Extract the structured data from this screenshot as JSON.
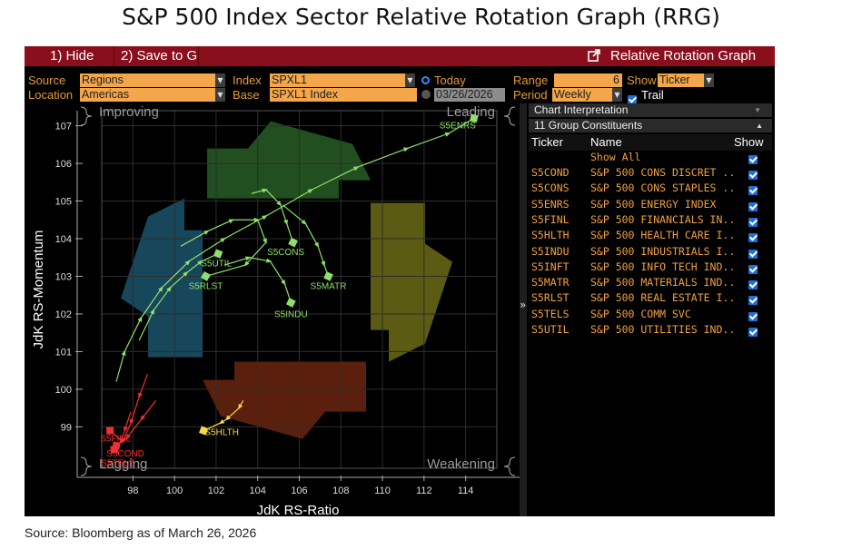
{
  "title": "S&P 500 Index Sector Relative Rotation Graph (RRG)",
  "source_note": "Source: Bloomberg as of March 26, 2026",
  "toolbar": {
    "hide_label": "1) Hide",
    "save_label": "2) Save to G",
    "window_title": "Relative Rotation Graph"
  },
  "controls": {
    "source_label": "Source",
    "source_value": "Regions",
    "location_label": "Location",
    "location_value": "Americas",
    "index_label": "Index",
    "index_value": "SPXL1",
    "base_label": "Base",
    "base_value": "SPXL1 Index",
    "today_label": "Today",
    "date_value": "03/26/2026",
    "range_label": "Range",
    "range_value": "6",
    "period_label": "Period",
    "period_value": "Weekly",
    "show_label": "Show",
    "show_value": "Ticker",
    "trail_label": "Trail"
  },
  "panel": {
    "header1": "Chart Interpretation",
    "header2": "11 Group Constituents",
    "col_ticker": "Ticker",
    "col_name": "Name",
    "col_show": "Show",
    "show_all": "Show All",
    "rows": [
      {
        "ticker": "S5COND",
        "name": "S&P 500 CONS DISCRET ..."
      },
      {
        "ticker": "S5CONS",
        "name": "S&P 500 CONS STAPLES ..."
      },
      {
        "ticker": "S5ENRS",
        "name": "S&P 500 ENERGY INDEX"
      },
      {
        "ticker": "S5FINL",
        "name": "S&P 500 FINANCIALS IN..."
      },
      {
        "ticker": "S5HLTH",
        "name": "S&P 500 HEALTH CARE I..."
      },
      {
        "ticker": "S5INDU",
        "name": "S&P 500 INDUSTRIALS I..."
      },
      {
        "ticker": "S5INFT",
        "name": "S&P 500 INFO TECH IND..."
      },
      {
        "ticker": "S5MATR",
        "name": "S&P 500 MATERIALS IND..."
      },
      {
        "ticker": "S5RLST",
        "name": "S&P 500 REAL ESTATE I..."
      },
      {
        "ticker": "S5TELS",
        "name": "S&P 500 COMM SVC"
      },
      {
        "ticker": "S5UTIL",
        "name": "S&P 500 UTILITIES IND..."
      }
    ]
  },
  "chart_data": {
    "type": "scatter",
    "xlabel": "JdK RS-Ratio",
    "ylabel": "JdK RS-Momentum",
    "xlim": [
      96.5,
      115.5
    ],
    "ylim": [
      97.9,
      107.4
    ],
    "xticks": [
      98,
      100,
      102,
      104,
      106,
      108,
      110,
      112,
      114
    ],
    "yticks": [
      99,
      100,
      101,
      102,
      103,
      104,
      105,
      106,
      107
    ],
    "quadrants": {
      "top_left": "Improving",
      "top_right": "Leading",
      "bottom_left": "Lagging",
      "bottom_right": "Weakening"
    },
    "quadrant_colors": {
      "improving": "#1f5f7a",
      "leading": "#2d6a2a",
      "weakening": "#7a7a1a",
      "lagging": "#7a2a12"
    },
    "series": [
      {
        "name": "S5ENRS",
        "color": "#8ee06a",
        "points": [
          [
            97.2,
            100.2
          ],
          [
            97.6,
            101
          ],
          [
            98.4,
            101.9
          ],
          [
            99.4,
            102.7
          ],
          [
            100.7,
            103.4
          ],
          [
            102.4,
            104
          ],
          [
            104.4,
            104.6
          ],
          [
            106.6,
            105.3
          ],
          [
            108.8,
            105.9
          ],
          [
            111.2,
            106.4
          ],
          [
            113.2,
            106.8
          ],
          [
            114.4,
            107.2
          ]
        ]
      },
      {
        "name": "S5UTIL",
        "color": "#8ee06a",
        "points": [
          [
            98.3,
            101.3
          ],
          [
            99,
            102.1
          ],
          [
            99.8,
            102.7
          ],
          [
            100.6,
            103.1
          ],
          [
            101.3,
            103.4
          ],
          [
            102.1,
            103.6
          ]
        ]
      },
      {
        "name": "S5RLST",
        "color": "#8ee06a",
        "points": [
          [
            100.3,
            103.8
          ],
          [
            101.6,
            104.2
          ],
          [
            102.8,
            104.5
          ],
          [
            104,
            104.5
          ],
          [
            104.4,
            103.9
          ],
          [
            103.4,
            103.3
          ],
          [
            101.5,
            103
          ]
        ]
      },
      {
        "name": "S5CONS",
        "color": "#8ee06a",
        "points": [
          [
            103.7,
            105.2
          ],
          [
            104.4,
            105.3
          ],
          [
            105.1,
            104.9
          ],
          [
            105.4,
            104.4
          ],
          [
            105.7,
            103.9
          ]
        ]
      },
      {
        "name": "S5MATR",
        "color": "#8ee06a",
        "points": [
          [
            105.2,
            104.9
          ],
          [
            106.3,
            104.4
          ],
          [
            106.9,
            103.8
          ],
          [
            107.2,
            103.3
          ],
          [
            107.4,
            103
          ]
        ]
      },
      {
        "name": "S5INDU",
        "color": "#8ee06a",
        "points": [
          [
            102.4,
            103.3
          ],
          [
            103.6,
            103.5
          ],
          [
            104.6,
            103.4
          ],
          [
            105.3,
            102.8
          ],
          [
            105.6,
            102.3
          ]
        ]
      },
      {
        "name": "S5HLTH",
        "color": "#f5d84a",
        "points": [
          [
            103.3,
            99.7
          ],
          [
            103.1,
            99.5
          ],
          [
            102.5,
            99.2
          ],
          [
            102.2,
            99.1
          ],
          [
            101.4,
            98.9
          ]
        ]
      },
      {
        "name": "S5FINL",
        "color": "#f03030",
        "points": [
          [
            98.7,
            100.4
          ],
          [
            98.3,
            99.8
          ],
          [
            97.9,
            99.1
          ],
          [
            97.5,
            98.6
          ],
          [
            96.9,
            98.9
          ]
        ]
      },
      {
        "name": "S5COND",
        "color": "#f03030",
        "points": [
          [
            99.1,
            99.7
          ],
          [
            98.4,
            99.2
          ],
          [
            97.7,
            98.7
          ],
          [
            97.2,
            98.5
          ]
        ]
      },
      {
        "name": "S5TELS",
        "color": "#f03030",
        "points": [
          [
            97.9,
            99.4
          ],
          [
            97.6,
            98.9
          ],
          [
            97.4,
            98.6
          ],
          [
            97.1,
            98.4
          ]
        ]
      }
    ],
    "labels": [
      {
        "text": "S5ENRS",
        "x": 114.4,
        "y": 107.2
      },
      {
        "text": "S5UTIL",
        "x": 102.1,
        "y": 103.6
      },
      {
        "text": "S5RLST",
        "x": 101.5,
        "y": 103
      },
      {
        "text": "S5CONS",
        "x": 105.7,
        "y": 103.9
      },
      {
        "text": "S5MATR",
        "x": 107.4,
        "y": 103
      },
      {
        "text": "S5INDU",
        "x": 105.6,
        "y": 102.3
      },
      {
        "text": "S5HLTH",
        "x": 101.4,
        "y": 98.9
      },
      {
        "text": "S5FINL",
        "x": 96.9,
        "y": 98.9
      },
      {
        "text": "S5COND",
        "x": 97.2,
        "y": 98.5
      },
      {
        "text": "S5TELS",
        "x": 97.1,
        "y": 98.4
      }
    ]
  }
}
